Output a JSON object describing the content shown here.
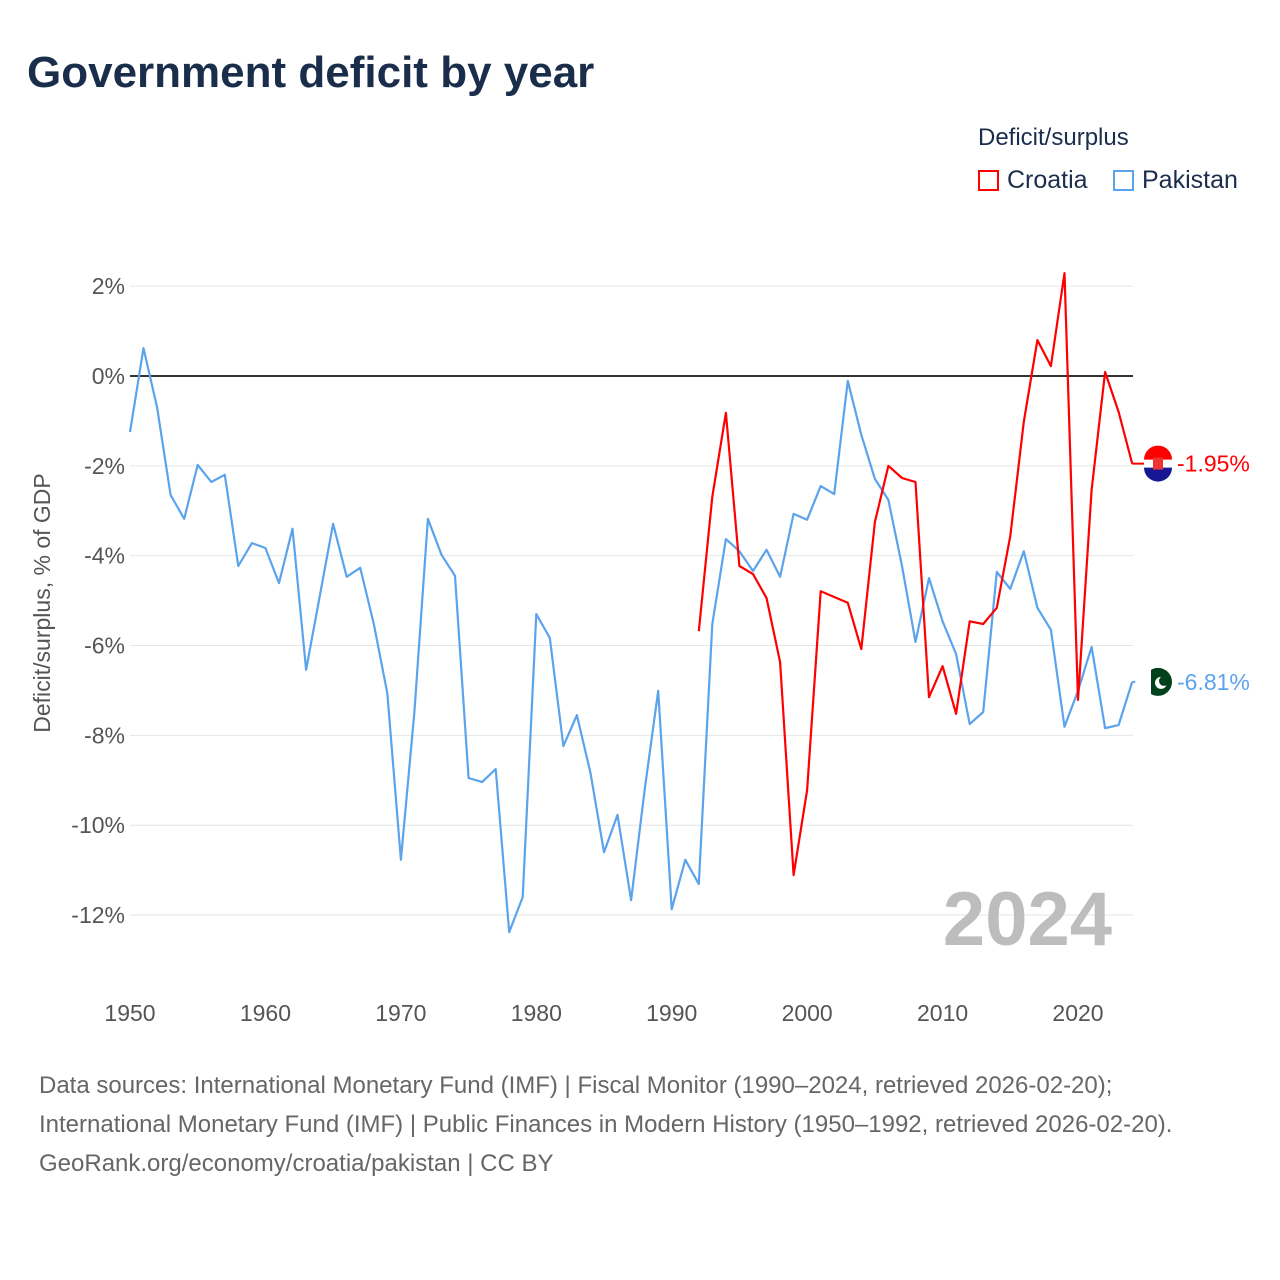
{
  "title": "Government deficit by year",
  "legend": {
    "title": "Deficit/surplus",
    "items": [
      "Croatia",
      "Pakistan"
    ]
  },
  "year_label": "2024",
  "footer": {
    "sources": "Data sources: International Monetary Fund (IMF) | Fiscal Monitor (1990–2024, retrieved 2026-02-20); International Monetary Fund (IMF) | Public Finances in Modern History (1950–1992, retrieved 2026-02-20).",
    "credit": "GeoRank.org/economy/croatia/pakistan | CC BY"
  },
  "chart_data": {
    "type": "line",
    "title": "Government deficit by year",
    "xlabel": "",
    "ylabel": "Deficit/surplus, % of GDP",
    "xlim": [
      1950,
      2024
    ],
    "ylim": [
      -13,
      2.5
    ],
    "xticks": [
      1950,
      1960,
      1970,
      1980,
      1990,
      2000,
      2010,
      2020
    ],
    "yticks": [
      2,
      0,
      -2,
      -4,
      -6,
      -8,
      -10,
      -12
    ],
    "ytick_labels": [
      "2%",
      "0%",
      "-2%",
      "-4%",
      "-6%",
      "-8%",
      "-10%",
      "-12%"
    ],
    "grid": true,
    "legend_position": "top-right",
    "series": [
      {
        "name": "Croatia",
        "color": "#ff0000",
        "end_label": "-1.95%",
        "start_year": 1992,
        "values": [
          -5.68,
          -2.69,
          -0.82,
          -4.23,
          -4.41,
          -4.94,
          -6.37,
          -11.11,
          -9.22,
          -4.79,
          -4.92,
          -5.05,
          -6.08,
          -3.25,
          -2.0,
          -2.27,
          -2.36,
          -7.15,
          -6.46,
          -7.52,
          -5.46,
          -5.52,
          -5.16,
          -3.56,
          -1.02,
          0.8,
          0.22,
          2.29,
          -7.21,
          -2.54,
          0.09,
          -0.8,
          -1.95
        ]
      },
      {
        "name": "Pakistan",
        "color": "#5ba3ec",
        "end_label": "-6.81%",
        "start_year": 1950,
        "values": [
          -1.25,
          0.62,
          -0.7,
          -2.65,
          -3.18,
          -1.98,
          -2.36,
          -2.2,
          -4.23,
          -3.72,
          -3.83,
          -4.61,
          -3.4,
          -6.54,
          -4.92,
          -3.29,
          -4.47,
          -4.27,
          -5.52,
          -7.06,
          -10.77,
          -7.48,
          -3.18,
          -3.98,
          -4.45,
          -8.95,
          -9.04,
          -8.75,
          -12.38,
          -11.6,
          -5.3,
          -5.83,
          -8.24,
          -7.55,
          -8.84,
          -10.6,
          -9.77,
          -11.67,
          -9.22,
          -7.01,
          -11.87,
          -10.77,
          -11.31,
          -5.52,
          -3.63,
          -3.9,
          -4.34,
          -3.87,
          -4.47,
          -3.07,
          -3.2,
          -2.45,
          -2.63,
          -0.11,
          -1.31,
          -2.29,
          -2.76,
          -4.23,
          -5.92,
          -4.5,
          -5.46,
          -6.19,
          -7.75,
          -7.48,
          -4.36,
          -4.74,
          -3.9,
          -5.16,
          -5.65,
          -7.81,
          -7.01,
          -6.03,
          -7.84,
          -7.77,
          -6.81
        ]
      }
    ]
  }
}
